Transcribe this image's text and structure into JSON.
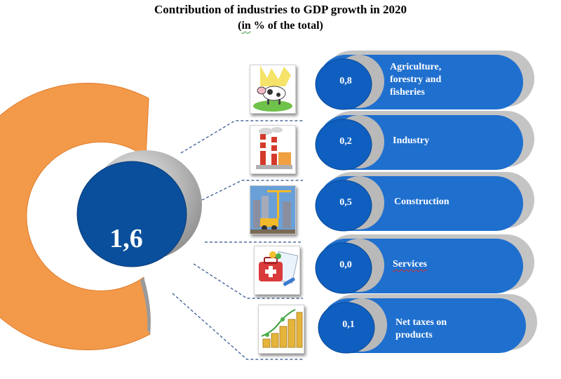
{
  "title_line1": "Contribution of industries to GDP growth in 2020",
  "title_line2_prefix": "(",
  "title_line2_in": "in",
  "title_line2_suffix": " % of the total)",
  "total_value": "1,6",
  "colors": {
    "ring": "#f39a4a",
    "circle": "#0a4f9c",
    "pill": "#1f6fce",
    "pill_back": "#bfbfbf"
  },
  "chart_data": {
    "type": "bar",
    "title": "Contribution of industries to GDP growth in 2020",
    "subtitle": "(in % of the total)",
    "total": 1.6,
    "categories": [
      "Agriculture, forestry and fisheries",
      "Industry",
      "Construction",
      "Services",
      "Net taxes on products"
    ],
    "values": [
      0.8,
      0.2,
      0.5,
      0.0,
      0.1
    ],
    "value_labels": [
      "0,8",
      "0,2",
      "0,5",
      "0,0",
      "0,1"
    ]
  },
  "items": [
    {
      "value": "0,8",
      "label": "Agriculture,\nforestry and\nfisheries",
      "icon": "cow-meadow-icon"
    },
    {
      "value": "0,2",
      "label": "Industry",
      "icon": "factory-icon"
    },
    {
      "value": "0,5",
      "label": "Construction",
      "icon": "construction-crane-icon"
    },
    {
      "value": "0,0",
      "label": "Services",
      "icon": "medical-kit-icon"
    },
    {
      "value": "0,1",
      "label": "Net taxes on\nproducts",
      "icon": "coin-stacks-icon"
    }
  ]
}
